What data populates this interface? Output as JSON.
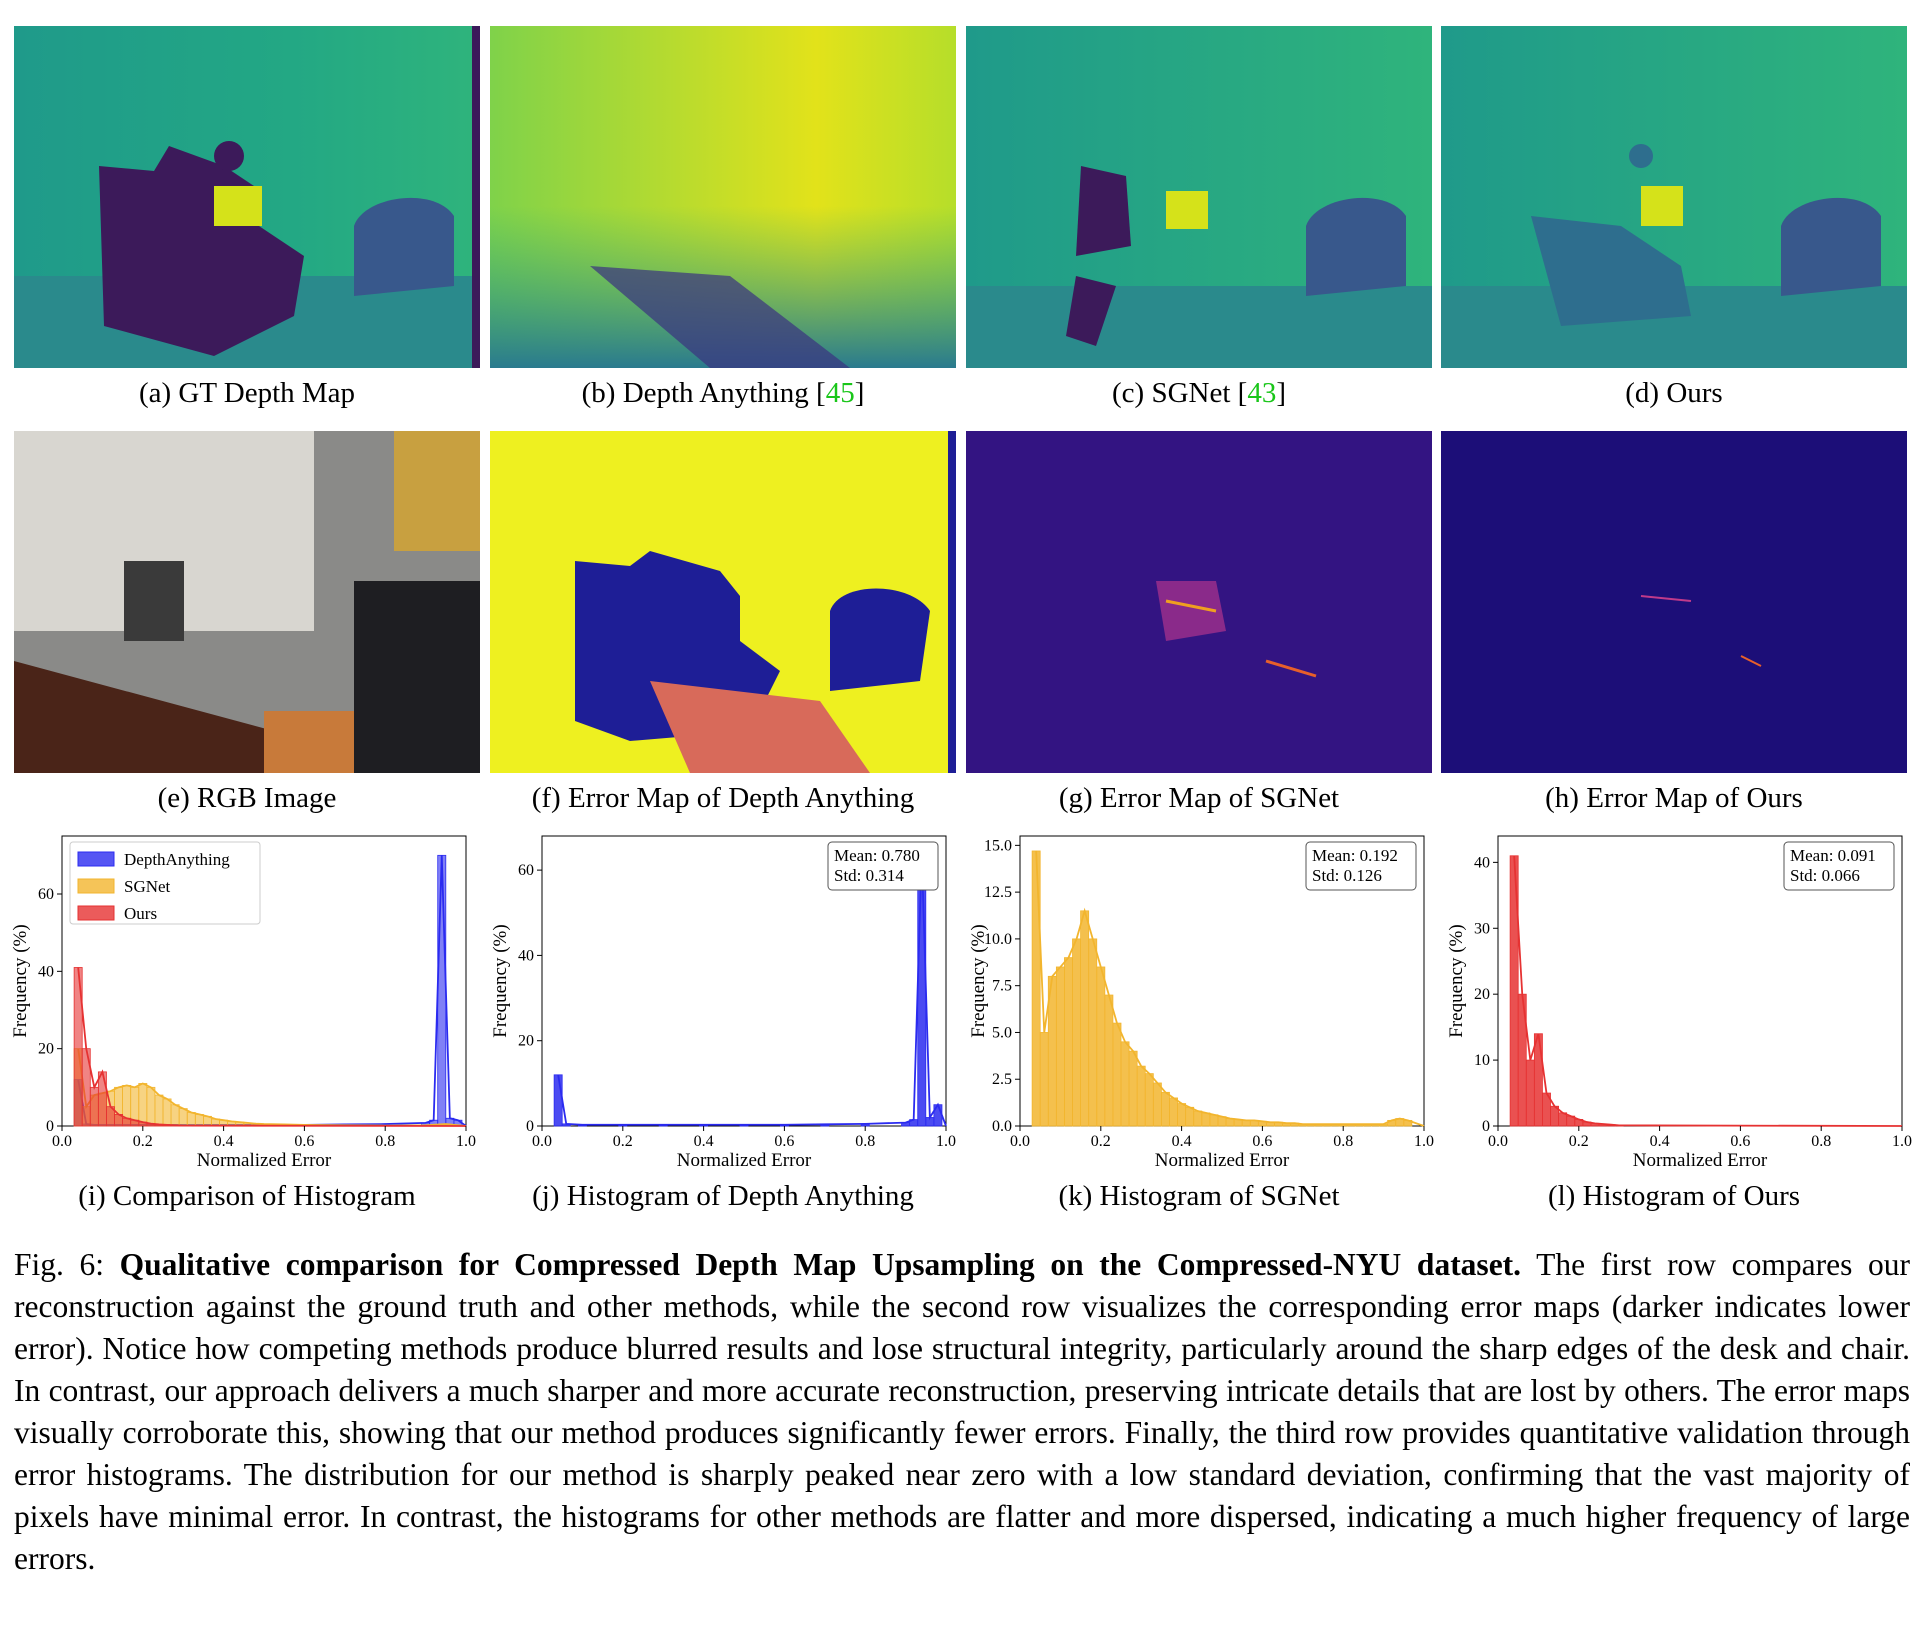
{
  "row1_captions": [
    {
      "prefix": "(a) GT Depth Map",
      "ref": "",
      "suffix": ""
    },
    {
      "prefix": "(b) Depth Anything [",
      "ref": "45",
      "suffix": "]"
    },
    {
      "prefix": "(c) SGNet [",
      "ref": "43",
      "suffix": "]"
    },
    {
      "prefix": "(d) Ours",
      "ref": "",
      "suffix": ""
    }
  ],
  "row2_captions": [
    "(e) RGB Image",
    "(f) Error Map of Depth Anything",
    "(g) Error Map of SGNet",
    "(h) Error Map of Ours"
  ],
  "row3_captions": [
    "(i) Comparison of Histogram",
    "(j) Histogram of Depth Anything",
    "(k) Histogram of SGNet",
    "(l) Histogram of Ours"
  ],
  "figure_caption": {
    "label": "Fig. 6: ",
    "bold": "Qualitative comparison for Compressed Depth Map Upsampling on the Compressed-NYU dataset.",
    "body": " The first row compares our reconstruction against the ground truth and other methods, while the second row visualizes the corresponding error maps (darker indicates lower error). Notice how competing methods produce blurred results and lose structural integrity, particularly around the sharp edges of the desk and chair. In contrast, our approach delivers a much sharper and more accurate reconstruction, preserving intricate details that are lost by others. The error maps visually corroborate this, showing that our method produces significantly fewer errors. Finally, the third row provides quantitative validation through error histograms. The distribution for our method is sharply peaked near zero with a low standard deviation, confirming that the vast majority of pixels have minimal error. In contrast, the histograms for other methods are flatter and more dispersed, indicating a much higher frequency of large errors."
  },
  "colors": {
    "depth_anything": "#2b2bf0",
    "sgnet": "#f2b52e",
    "ours": "#e63232",
    "ref_green": "#19c619"
  },
  "chart_data": [
    {
      "type": "bar",
      "id": "i",
      "xlabel": "Normalized Error",
      "ylabel": "Frequency (%)",
      "xlim": [
        0,
        1
      ],
      "ylim": [
        0,
        75
      ],
      "xticks": [
        "0.0",
        "0.2",
        "0.4",
        "0.6",
        "0.8",
        "1.0"
      ],
      "yticks": [
        0,
        20,
        40,
        60
      ],
      "legend": "top-left",
      "series": [
        {
          "name": "DepthAnything",
          "color": "#2b2bf0",
          "x": [
            0.04,
            0.06,
            0.08,
            0.1,
            0.12,
            0.14,
            0.16,
            0.18,
            0.2,
            0.22,
            0.24,
            0.26,
            0.28,
            0.3,
            0.32,
            0.34,
            0.36,
            0.38,
            0.4,
            0.5,
            0.6,
            0.7,
            0.8,
            0.9,
            0.92,
            0.94,
            0.96,
            0.98
          ],
          "values": [
            12,
            0.5,
            0.3,
            0.3,
            0.3,
            0.3,
            0.3,
            0.3,
            0.3,
            0.3,
            0.3,
            0.3,
            0.3,
            0.3,
            0.3,
            0.3,
            0.3,
            0.3,
            0.3,
            0.3,
            0.3,
            0.4,
            0.5,
            0.8,
            1.5,
            70,
            2,
            1.5
          ]
        },
        {
          "name": "SGNet",
          "color": "#f2b52e",
          "x": [
            0.04,
            0.06,
            0.08,
            0.1,
            0.12,
            0.14,
            0.16,
            0.18,
            0.2,
            0.22,
            0.24,
            0.26,
            0.28,
            0.3,
            0.32,
            0.34,
            0.36,
            0.38,
            0.4,
            0.42,
            0.44,
            0.46,
            0.48,
            0.5,
            0.55,
            0.6,
            0.7,
            0.8,
            0.9,
            0.95
          ],
          "values": [
            20,
            5,
            8,
            8.5,
            9,
            10,
            10.5,
            10,
            11,
            10,
            8,
            7,
            5.5,
            4.5,
            3.5,
            3,
            2.5,
            1.8,
            1.5,
            1.2,
            1,
            0.8,
            0.6,
            0.5,
            0.4,
            0.3,
            0.2,
            0.1,
            0.2,
            0.5
          ]
        },
        {
          "name": "Ours",
          "color": "#e63232",
          "x": [
            0.04,
            0.06,
            0.08,
            0.1,
            0.12,
            0.14,
            0.16,
            0.18,
            0.2,
            0.22,
            0.24,
            0.26,
            0.28,
            0.3
          ],
          "values": [
            41,
            20,
            10,
            14,
            5,
            3,
            2,
            1.5,
            1,
            0.6,
            0.4,
            0.3,
            0.2,
            0.1
          ]
        }
      ]
    },
    {
      "type": "bar",
      "id": "j",
      "xlabel": "Normalized Error",
      "ylabel": "Frequency (%)",
      "xlim": [
        0,
        1
      ],
      "ylim": [
        0,
        68
      ],
      "xticks": [
        "0.0",
        "0.2",
        "0.4",
        "0.6",
        "0.8",
        "1.0"
      ],
      "yticks": [
        0,
        20,
        40,
        60
      ],
      "annotation": [
        "Mean: 0.780",
        "Std: 0.314"
      ],
      "series": [
        {
          "name": "",
          "color": "#2b2bf0",
          "x": [
            0.04,
            0.06,
            0.1,
            0.2,
            0.3,
            0.4,
            0.5,
            0.6,
            0.7,
            0.8,
            0.9,
            0.92,
            0.94,
            0.96,
            0.98
          ],
          "values": [
            12,
            0.5,
            0.3,
            0.3,
            0.3,
            0.3,
            0.3,
            0.3,
            0.4,
            0.5,
            0.8,
            1.5,
            64,
            2,
            5
          ]
        }
      ]
    },
    {
      "type": "bar",
      "id": "k",
      "xlabel": "Normalized Error",
      "ylabel": "Frequency (%)",
      "xlim": [
        0,
        1
      ],
      "ylim": [
        0,
        15.5
      ],
      "xticks": [
        "0.0",
        "0.2",
        "0.4",
        "0.6",
        "0.8",
        "1.0"
      ],
      "yticks": [
        "0.0",
        "2.5",
        "5.0",
        "7.5",
        "10.0",
        "12.5",
        "15.0"
      ],
      "annotation": [
        "Mean: 0.192",
        "Std: 0.126"
      ],
      "series": [
        {
          "name": "",
          "color": "#f2b52e",
          "x": [
            0.04,
            0.06,
            0.08,
            0.1,
            0.12,
            0.14,
            0.16,
            0.18,
            0.2,
            0.22,
            0.24,
            0.26,
            0.28,
            0.3,
            0.32,
            0.34,
            0.36,
            0.38,
            0.4,
            0.42,
            0.44,
            0.46,
            0.48,
            0.5,
            0.52,
            0.54,
            0.56,
            0.58,
            0.6,
            0.62,
            0.64,
            0.66,
            0.68,
            0.7,
            0.72,
            0.74,
            0.76,
            0.78,
            0.8,
            0.82,
            0.84,
            0.86,
            0.88,
            0.9,
            0.92,
            0.94,
            0.96
          ],
          "values": [
            14.7,
            5,
            8,
            8.5,
            9,
            10,
            11.5,
            10,
            8.5,
            7,
            5.5,
            4.5,
            4,
            3.2,
            2.8,
            2.3,
            1.8,
            1.5,
            1.2,
            1,
            0.8,
            0.7,
            0.6,
            0.5,
            0.4,
            0.35,
            0.3,
            0.3,
            0.25,
            0.2,
            0.2,
            0.15,
            0.15,
            0.1,
            0.1,
            0.1,
            0.1,
            0.1,
            0.1,
            0.1,
            0.1,
            0.1,
            0.1,
            0.1,
            0.3,
            0.4,
            0.3
          ]
        }
      ]
    },
    {
      "type": "bar",
      "id": "l",
      "xlabel": "Normalized Error",
      "ylabel": "Frequency (%)",
      "xlim": [
        0,
        1
      ],
      "ylim": [
        0,
        44
      ],
      "xticks": [
        "0.0",
        "0.2",
        "0.4",
        "0.6",
        "0.8",
        "1.0"
      ],
      "yticks": [
        0,
        10,
        20,
        30,
        40
      ],
      "annotation": [
        "Mean: 0.091",
        "Std: 0.066"
      ],
      "series": [
        {
          "name": "",
          "color": "#e63232",
          "x": [
            0.04,
            0.06,
            0.08,
            0.1,
            0.12,
            0.14,
            0.16,
            0.18,
            0.2,
            0.22,
            0.24,
            0.26,
            0.28,
            0.3
          ],
          "values": [
            41,
            20,
            10,
            14,
            5,
            3,
            2,
            1.5,
            1,
            0.6,
            0.4,
            0.3,
            0.2,
            0.1
          ]
        }
      ]
    }
  ]
}
